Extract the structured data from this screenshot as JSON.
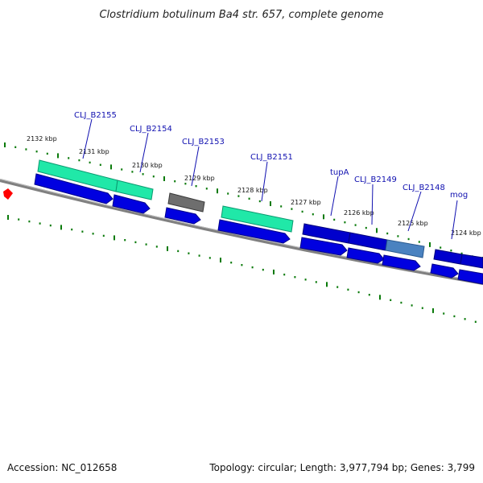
{
  "title": "Clostridium botulinum Ba4 str. 657, complete genome",
  "accession_text": "Accession: NC_012658",
  "topology_text": "Topology: circular; Length: 3,977,794 bp; Genes: 3,799",
  "colors": {
    "backbone": "#808080",
    "tick": "#0a7a0a",
    "cds": "#0000e0",
    "cds_dark": "#0000a0",
    "gene_green": "#20e8a8",
    "gene_gray": "#6e6e6e",
    "gene_steel": "#4a82c0",
    "gene_blue": "#0000cc",
    "marker_red": "#ff0000",
    "label": "#1010b0"
  },
  "scale_labels": [
    "2132 kbp",
    "2131 kbp",
    "2130 kbp",
    "2129 kbp",
    "2128 kbp",
    "2127 kbp",
    "2126 kbp",
    "2125 kbp",
    "2124 kbp"
  ],
  "gene_labels": [
    "CLJ_B2155",
    "CLJ_B2154",
    "CLJ_B2153",
    "CLJ_B2151",
    "tupA",
    "CLJ_B2149",
    "CLJ_B2148",
    "mog"
  ]
}
